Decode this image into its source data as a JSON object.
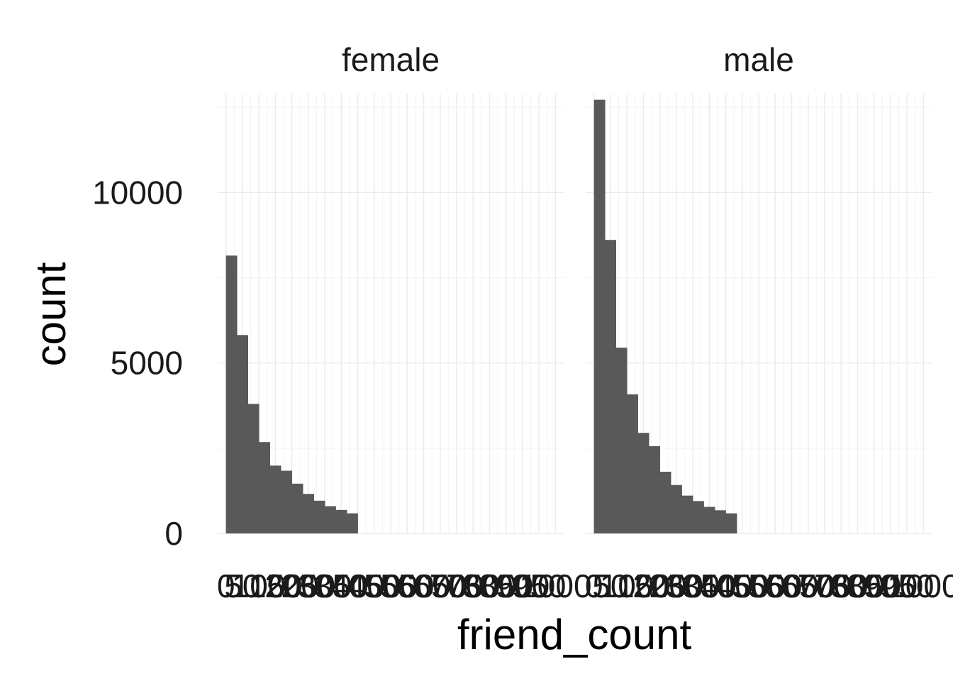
{
  "chart_data": {
    "type": "bar",
    "subtype": "histogram",
    "xlabel": "friend_count",
    "ylabel": "count",
    "ylim": [
      0,
      12900
    ],
    "xlim": [
      -25,
      1025
    ],
    "yticks": [
      0,
      5000,
      10000
    ],
    "xticks": [
      "0",
      "50",
      "100",
      "150",
      "200",
      "250",
      "300",
      "350",
      "400",
      "450",
      "500",
      "550",
      "600",
      "650",
      "700",
      "750",
      "800",
      "850",
      "900",
      "950",
      "1000"
    ],
    "grid": true,
    "bin_width": 33.33,
    "bin_start": 0,
    "colors": {
      "bar": "#595959",
      "grid": "#ebebeb"
    },
    "facets": [
      {
        "label": "female",
        "values": [
          8150,
          5820,
          3800,
          2680,
          1990,
          1840,
          1460,
          1160,
          960,
          800,
          690,
          590,
          480,
          410,
          350,
          300,
          280,
          250,
          230,
          200,
          180,
          160,
          130,
          120,
          110,
          100,
          90,
          80,
          70,
          60
        ]
      },
      {
        "label": "male",
        "values": [
          12720,
          8610,
          5450,
          4080,
          2950,
          2560,
          1810,
          1420,
          1110,
          950,
          780,
          680,
          590,
          490,
          440,
          370,
          320,
          270,
          250,
          230,
          200,
          190,
          170,
          150,
          140,
          120,
          110,
          100,
          90,
          80
        ]
      }
    ]
  }
}
